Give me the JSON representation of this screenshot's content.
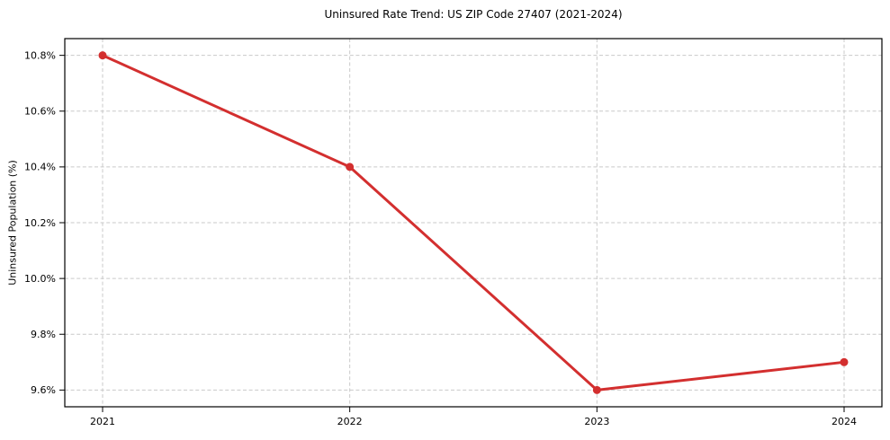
{
  "chart_data": {
    "type": "line",
    "title": "Uninsured Rate Trend: US ZIP Code 27407 (2021-2024)",
    "xlabel": "",
    "ylabel": "Uninsured Population (%)",
    "categories": [
      "2021",
      "2022",
      "2023",
      "2024"
    ],
    "values": [
      10.8,
      10.4,
      9.6,
      9.7
    ],
    "x_tick_labels": [
      "2021",
      "2022",
      "2023",
      "2024"
    ],
    "y_tick_values": [
      9.6,
      9.8,
      10.0,
      10.2,
      10.4,
      10.6,
      10.8
    ],
    "y_tick_labels": [
      "9.6%",
      "9.8%",
      "10.0%",
      "10.2%",
      "10.4%",
      "10.6%",
      "10.8%"
    ],
    "ylim": [
      9.54,
      10.86
    ],
    "grid": true,
    "grid_line_style": "dashed",
    "legend_position": "none",
    "line_color": "#d32f2f",
    "marker_color": "#d32f2f",
    "grid_color": "#c9c9c9",
    "spine_color": "#000000",
    "background_color": "#ffffff"
  }
}
